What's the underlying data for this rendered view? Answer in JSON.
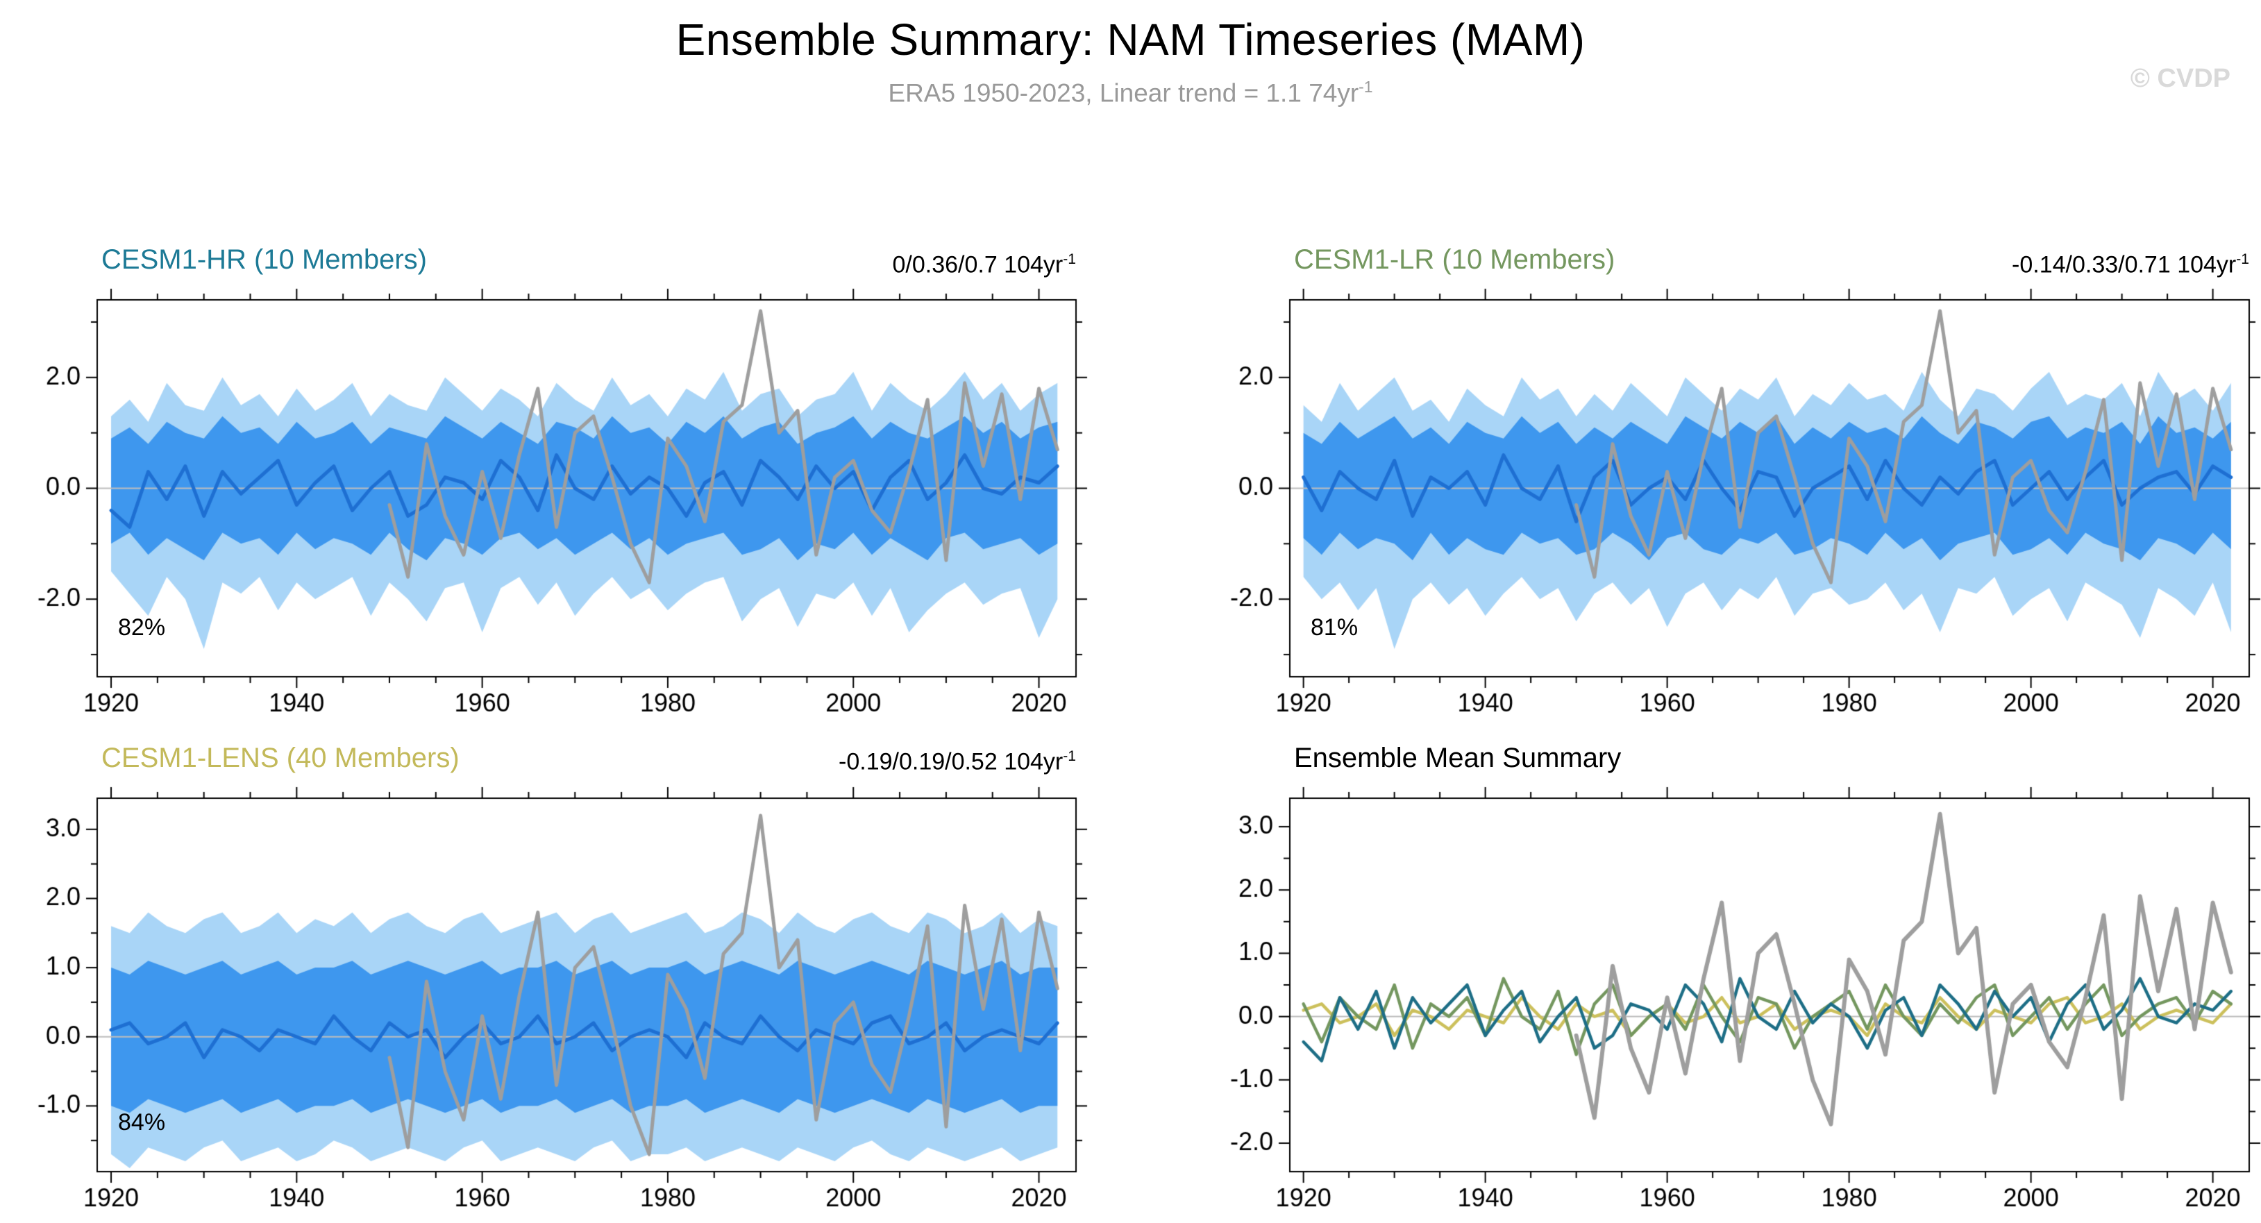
{
  "header": {
    "title": "Ensemble Summary: NAM Timeseries (MAM)",
    "subtitle_text": "ERA5 1950-2023, Linear trend = 1.1 74yr",
    "subtitle_sup": "-1",
    "watermark": "© CVDP"
  },
  "colors": {
    "outer_band": "#a9d5f7",
    "inner_band": "#3e97ee",
    "mean_line": "#1e6fd2",
    "obs_line": "#9e9e9e",
    "zero_line": "#bdbdbd",
    "hr": "#1d6e86",
    "lr": "#74975f",
    "lens": "#ccc05c",
    "hr_title": "#1d7a96",
    "lr_title": "#74975f",
    "lens_title": "#c3b95a",
    "summary_title": "#000000",
    "subtitle": "#999999",
    "watermark": "#d9d9d9",
    "axis": "#000000"
  },
  "chart_data": {
    "type": "line",
    "title": "Ensemble Summary: NAM Timeseries (MAM)",
    "subtitle": "ERA5 1950-2023, Linear trend = 1.1 74yr-1",
    "x_years_models": [
      1920,
      1922,
      1924,
      1926,
      1928,
      1930,
      1932,
      1934,
      1936,
      1938,
      1940,
      1942,
      1944,
      1946,
      1948,
      1950,
      1952,
      1954,
      1956,
      1958,
      1960,
      1962,
      1964,
      1966,
      1968,
      1970,
      1972,
      1974,
      1976,
      1978,
      1980,
      1982,
      1984,
      1986,
      1988,
      1990,
      1992,
      1994,
      1996,
      1998,
      2000,
      2002,
      2004,
      2006,
      2008,
      2010,
      2012,
      2014,
      2016,
      2018,
      2020,
      2022
    ],
    "obs": {
      "name": "ERA5",
      "years": [
        1950,
        1952,
        1954,
        1956,
        1958,
        1960,
        1962,
        1964,
        1966,
        1968,
        1970,
        1972,
        1974,
        1976,
        1978,
        1980,
        1982,
        1984,
        1986,
        1988,
        1990,
        1992,
        1994,
        1996,
        1998,
        2000,
        2002,
        2004,
        2006,
        2008,
        2010,
        2012,
        2014,
        2016,
        2018,
        2020,
        2022
      ],
      "values": [
        -0.3,
        -1.6,
        0.8,
        -0.5,
        -1.2,
        0.3,
        -0.9,
        0.6,
        1.8,
        -0.7,
        1.0,
        1.3,
        0.2,
        -1.0,
        -1.7,
        0.9,
        0.4,
        -0.6,
        1.2,
        1.5,
        3.2,
        1.0,
        1.4,
        -1.2,
        0.2,
        0.5,
        -0.4,
        -0.8,
        0.3,
        1.6,
        -1.3,
        1.9,
        0.4,
        1.7,
        -0.2,
        1.8,
        0.7
      ]
    },
    "models": {
      "cesm1_hr": {
        "label": "CESM1-HR (10 Members)",
        "mean": [
          -0.4,
          -0.7,
          0.3,
          -0.2,
          0.4,
          -0.5,
          0.3,
          -0.1,
          0.2,
          0.5,
          -0.3,
          0.1,
          0.4,
          -0.4,
          0.0,
          0.3,
          -0.5,
          -0.3,
          0.2,
          0.1,
          -0.2,
          0.5,
          0.2,
          -0.4,
          0.6,
          0.0,
          -0.2,
          0.4,
          -0.1,
          0.2,
          0.0,
          -0.5,
          0.1,
          0.3,
          -0.3,
          0.5,
          0.2,
          -0.2,
          0.4,
          0.0,
          0.3,
          -0.4,
          0.2,
          0.5,
          -0.2,
          0.1,
          0.6,
          0.0,
          -0.1,
          0.2,
          0.1,
          0.4
        ],
        "inner_upper": [
          0.9,
          1.1,
          0.8,
          1.2,
          1.0,
          0.9,
          1.3,
          1.0,
          1.1,
          0.8,
          1.2,
          0.9,
          1.0,
          1.2,
          0.8,
          1.1,
          1.0,
          0.9,
          1.3,
          1.1,
          0.9,
          1.2,
          1.0,
          0.8,
          1.2,
          1.1,
          0.9,
          1.3,
          1.0,
          1.1,
          0.8,
          1.2,
          1.0,
          1.3,
          0.9,
          1.1,
          1.2,
          0.8,
          1.0,
          1.1,
          1.3,
          0.9,
          1.2,
          1.0,
          0.9,
          1.1,
          1.3,
          1.0,
          1.2,
          0.9,
          1.1,
          1.2
        ],
        "inner_lower": [
          -1.0,
          -0.8,
          -1.2,
          -0.9,
          -1.1,
          -1.3,
          -0.8,
          -1.0,
          -0.9,
          -1.2,
          -0.8,
          -1.1,
          -0.9,
          -1.0,
          -1.2,
          -0.8,
          -1.1,
          -1.3,
          -0.9,
          -1.0,
          -1.2,
          -0.9,
          -0.8,
          -1.1,
          -0.9,
          -1.2,
          -1.0,
          -0.8,
          -1.1,
          -0.9,
          -1.2,
          -1.0,
          -0.9,
          -0.8,
          -1.2,
          -1.1,
          -0.9,
          -1.3,
          -1.0,
          -1.1,
          -0.8,
          -1.2,
          -0.9,
          -1.1,
          -1.3,
          -0.9,
          -0.8,
          -1.1,
          -1.0,
          -0.9,
          -1.2,
          -1.0
        ],
        "outer_upper": [
          1.3,
          1.6,
          1.2,
          1.9,
          1.5,
          1.4,
          2.0,
          1.5,
          1.7,
          1.3,
          1.8,
          1.4,
          1.6,
          1.9,
          1.3,
          1.7,
          1.5,
          1.4,
          2.0,
          1.7,
          1.4,
          1.8,
          1.6,
          1.3,
          1.9,
          1.6,
          1.4,
          2.0,
          1.5,
          1.7,
          1.3,
          1.8,
          1.6,
          2.1,
          1.4,
          1.7,
          1.8,
          1.3,
          1.6,
          1.7,
          2.1,
          1.4,
          1.9,
          1.6,
          1.4,
          1.7,
          2.1,
          1.6,
          1.9,
          1.4,
          1.7,
          1.9
        ],
        "outer_lower": [
          -1.5,
          -1.9,
          -2.3,
          -1.6,
          -2.0,
          -2.9,
          -1.7,
          -1.9,
          -1.6,
          -2.2,
          -1.7,
          -2.0,
          -1.8,
          -1.6,
          -2.3,
          -1.7,
          -2.0,
          -2.4,
          -1.8,
          -1.7,
          -2.6,
          -1.8,
          -1.6,
          -2.1,
          -1.7,
          -2.3,
          -1.9,
          -1.6,
          -2.0,
          -1.8,
          -2.2,
          -1.9,
          -1.7,
          -1.6,
          -2.4,
          -2.0,
          -1.8,
          -2.5,
          -1.9,
          -2.0,
          -1.7,
          -2.3,
          -1.8,
          -2.6,
          -2.2,
          -1.9,
          -1.7,
          -2.1,
          -1.9,
          -1.8,
          -2.7,
          -2.0
        ]
      },
      "cesm1_lr": {
        "label": "CESM1-LR (10 Members)",
        "mean": [
          0.2,
          -0.4,
          0.3,
          0.0,
          -0.2,
          0.5,
          -0.5,
          0.2,
          0.0,
          0.3,
          -0.3,
          0.6,
          0.0,
          -0.2,
          0.4,
          -0.6,
          0.2,
          0.5,
          -0.3,
          0.0,
          0.2,
          -0.2,
          0.5,
          0.0,
          -0.4,
          0.3,
          0.2,
          -0.5,
          0.0,
          0.2,
          0.4,
          -0.2,
          0.5,
          0.0,
          -0.3,
          0.2,
          -0.1,
          0.3,
          0.5,
          -0.3,
          0.0,
          0.3,
          -0.2,
          0.2,
          0.5,
          -0.3,
          0.0,
          0.2,
          0.3,
          -0.1,
          0.4,
          0.2
        ],
        "inner_upper": [
          1.0,
          0.8,
          1.2,
          0.9,
          1.1,
          1.3,
          0.9,
          1.1,
          0.8,
          1.2,
          1.0,
          0.9,
          1.3,
          1.0,
          1.2,
          0.8,
          1.1,
          0.9,
          1.2,
          1.0,
          0.8,
          1.3,
          1.1,
          0.9,
          1.2,
          1.0,
          1.3,
          0.8,
          1.1,
          0.9,
          1.2,
          1.0,
          1.1,
          0.9,
          1.3,
          1.0,
          0.8,
          1.2,
          1.1,
          0.9,
          1.2,
          1.3,
          0.9,
          1.1,
          1.0,
          1.2,
          0.8,
          1.3,
          1.0,
          1.1,
          0.9,
          1.2
        ],
        "inner_lower": [
          -0.9,
          -1.2,
          -0.8,
          -1.1,
          -0.9,
          -1.0,
          -1.3,
          -0.8,
          -1.2,
          -0.9,
          -1.1,
          -1.2,
          -0.8,
          -1.0,
          -0.9,
          -1.2,
          -1.1,
          -0.8,
          -1.0,
          -1.3,
          -0.9,
          -0.8,
          -1.1,
          -1.2,
          -0.9,
          -1.0,
          -0.8,
          -1.2,
          -1.1,
          -0.9,
          -1.0,
          -1.2,
          -0.8,
          -1.1,
          -0.9,
          -1.3,
          -1.0,
          -0.9,
          -0.8,
          -1.2,
          -1.1,
          -0.9,
          -1.2,
          -0.8,
          -1.0,
          -1.1,
          -1.3,
          -0.9,
          -1.0,
          -1.2,
          -0.8,
          -1.1
        ],
        "outer_upper": [
          1.5,
          1.2,
          1.9,
          1.4,
          1.7,
          2.0,
          1.4,
          1.6,
          1.2,
          1.8,
          1.5,
          1.3,
          2.0,
          1.6,
          1.8,
          1.3,
          1.7,
          1.4,
          1.9,
          1.6,
          1.3,
          2.0,
          1.7,
          1.4,
          1.8,
          1.6,
          2.0,
          1.3,
          1.7,
          1.5,
          1.9,
          1.6,
          1.7,
          1.4,
          2.1,
          1.6,
          1.3,
          1.8,
          1.7,
          1.4,
          1.8,
          2.1,
          1.5,
          1.7,
          1.6,
          1.9,
          1.3,
          2.1,
          1.6,
          1.8,
          1.4,
          1.9
        ],
        "outer_lower": [
          -1.6,
          -2.0,
          -1.7,
          -2.2,
          -1.8,
          -2.9,
          -2.0,
          -1.7,
          -2.1,
          -1.8,
          -2.3,
          -1.9,
          -1.6,
          -2.0,
          -1.8,
          -2.4,
          -1.9,
          -1.7,
          -2.1,
          -1.8,
          -2.5,
          -1.9,
          -1.7,
          -2.2,
          -1.8,
          -2.0,
          -1.6,
          -2.3,
          -1.9,
          -1.8,
          -2.1,
          -2.0,
          -1.7,
          -2.2,
          -1.9,
          -2.6,
          -1.8,
          -1.9,
          -1.6,
          -2.3,
          -2.0,
          -1.8,
          -2.4,
          -1.7,
          -1.9,
          -2.1,
          -2.7,
          -1.8,
          -2.0,
          -2.3,
          -1.7,
          -2.6
        ]
      },
      "cesm1_lens": {
        "label": "CESM1-LENS (40 Members)",
        "mean": [
          0.1,
          0.2,
          -0.1,
          0.0,
          0.2,
          -0.3,
          0.1,
          0.0,
          -0.2,
          0.1,
          0.0,
          -0.1,
          0.3,
          0.0,
          -0.2,
          0.2,
          0.0,
          0.1,
          -0.3,
          0.0,
          0.2,
          -0.1,
          0.0,
          0.3,
          -0.1,
          0.0,
          0.2,
          -0.2,
          0.0,
          0.1,
          0.0,
          -0.3,
          0.2,
          0.0,
          -0.1,
          0.3,
          0.0,
          -0.2,
          0.1,
          0.0,
          -0.1,
          0.2,
          0.3,
          -0.1,
          0.0,
          0.2,
          -0.2,
          0.0,
          0.1,
          0.0,
          -0.1,
          0.2
        ],
        "inner_upper": [
          1.0,
          0.9,
          1.1,
          1.0,
          0.9,
          1.0,
          1.1,
          0.9,
          1.0,
          1.1,
          0.9,
          1.0,
          1.0,
          1.1,
          0.9,
          1.0,
          1.1,
          1.0,
          0.9,
          1.0,
          1.1,
          0.9,
          1.0,
          1.0,
          1.1,
          0.9,
          1.0,
          1.1,
          0.9,
          1.0,
          1.0,
          1.1,
          0.9,
          1.0,
          1.1,
          1.0,
          0.9,
          1.1,
          1.0,
          0.9,
          1.0,
          1.1,
          1.0,
          0.9,
          1.1,
          1.0,
          0.9,
          1.0,
          1.1,
          0.9,
          1.0,
          1.0
        ],
        "inner_lower": [
          -1.0,
          -1.1,
          -0.9,
          -1.0,
          -1.1,
          -1.0,
          -0.9,
          -1.1,
          -1.0,
          -0.9,
          -1.1,
          -1.0,
          -1.0,
          -0.9,
          -1.1,
          -1.0,
          -0.9,
          -1.0,
          -1.1,
          -1.0,
          -0.9,
          -1.1,
          -1.0,
          -1.0,
          -0.9,
          -1.1,
          -1.0,
          -0.9,
          -1.1,
          -1.0,
          -1.0,
          -0.9,
          -1.1,
          -1.0,
          -0.9,
          -1.0,
          -1.1,
          -0.9,
          -1.0,
          -1.1,
          -1.0,
          -0.9,
          -1.0,
          -1.1,
          -0.9,
          -1.0,
          -1.1,
          -1.0,
          -0.9,
          -1.1,
          -1.0,
          -1.0
        ],
        "outer_upper": [
          1.6,
          1.5,
          1.8,
          1.6,
          1.5,
          1.7,
          1.8,
          1.5,
          1.6,
          1.8,
          1.5,
          1.7,
          1.6,
          1.8,
          1.5,
          1.7,
          1.8,
          1.6,
          1.5,
          1.7,
          1.8,
          1.5,
          1.6,
          1.7,
          1.8,
          1.5,
          1.7,
          1.8,
          1.5,
          1.6,
          1.7,
          1.8,
          1.5,
          1.6,
          1.8,
          1.7,
          1.5,
          1.8,
          1.6,
          1.5,
          1.7,
          1.8,
          1.6,
          1.5,
          1.8,
          1.7,
          1.5,
          1.6,
          1.8,
          1.5,
          1.7,
          1.6
        ],
        "outer_lower": [
          -1.7,
          -1.9,
          -1.6,
          -1.7,
          -1.8,
          -1.6,
          -1.5,
          -1.8,
          -1.7,
          -1.6,
          -1.8,
          -1.7,
          -1.5,
          -1.6,
          -1.8,
          -1.7,
          -1.6,
          -1.7,
          -1.8,
          -1.6,
          -1.5,
          -1.8,
          -1.7,
          -1.6,
          -1.7,
          -1.8,
          -1.6,
          -1.5,
          -1.8,
          -1.7,
          -1.7,
          -1.6,
          -1.8,
          -1.7,
          -1.6,
          -1.7,
          -1.8,
          -1.6,
          -1.7,
          -1.8,
          -1.6,
          -1.5,
          -1.7,
          -1.8,
          -1.6,
          -1.7,
          -1.8,
          -1.7,
          -1.6,
          -1.8,
          -1.7,
          -1.6
        ]
      }
    },
    "panels": [
      {
        "id": "hr",
        "kind": "band",
        "model": "cesm1_hr",
        "title": "CESM1-HR (10 Members)",
        "stat_text": "0/0.36/0.7 104yr",
        "stat_sup": "-1",
        "pct": "82%",
        "ylim": [
          -3.4,
          3.4
        ],
        "yticks": [
          -2,
          0,
          2
        ],
        "ytick_labels": [
          "-2.0",
          "0.0",
          "2.0"
        ],
        "ytick_minor": 1,
        "xlim": [
          1918.5,
          2024
        ],
        "xticks": [
          1920,
          1940,
          1960,
          1980,
          2000,
          2020
        ],
        "xtick_labels": [
          "1920",
          "1940",
          "1960",
          "1980",
          "2000",
          "2020"
        ],
        "xtick_minor": 5
      },
      {
        "id": "lr",
        "kind": "band",
        "model": "cesm1_lr",
        "title": "CESM1-LR (10 Members)",
        "stat_text": "-0.14/0.33/0.71 104yr",
        "stat_sup": "-1",
        "pct": "81%",
        "ylim": [
          -3.4,
          3.4
        ],
        "yticks": [
          -2,
          0,
          2
        ],
        "ytick_labels": [
          "-2.0",
          "0.0",
          "2.0"
        ],
        "ytick_minor": 1,
        "xlim": [
          1918.5,
          2024
        ],
        "xticks": [
          1920,
          1940,
          1960,
          1980,
          2000,
          2020
        ],
        "xtick_labels": [
          "1920",
          "1940",
          "1960",
          "1980",
          "2000",
          "2020"
        ],
        "xtick_minor": 5
      },
      {
        "id": "lens",
        "kind": "band",
        "model": "cesm1_lens",
        "title": "CESM1-LENS (40 Members)",
        "stat_text": "-0.19/0.19/0.52 104yr",
        "stat_sup": "-1",
        "pct": "84%",
        "ylim": [
          -1.95,
          3.45
        ],
        "yticks": [
          3,
          2,
          1,
          0,
          -1
        ],
        "ytick_labels": [
          "3.0",
          "2.0",
          "1.0",
          "0.0",
          "-1.0"
        ],
        "ytick_minor": 0.5,
        "xlim": [
          1918.5,
          2024
        ],
        "xticks": [
          1920,
          1940,
          1960,
          1980,
          2000,
          2020
        ],
        "xtick_labels": [
          "1920",
          "1940",
          "1960",
          "1980",
          "2000",
          "2020"
        ],
        "xtick_minor": 5
      },
      {
        "id": "summary",
        "kind": "lines",
        "title": "Ensemble Mean Summary",
        "series": [
          "cesm1_lens",
          "cesm1_lr",
          "cesm1_hr",
          "obs"
        ],
        "ylim": [
          -2.45,
          3.45
        ],
        "yticks": [
          3,
          2,
          1,
          0,
          -1,
          -2
        ],
        "ytick_labels": [
          "3.0",
          "2.0",
          "1.0",
          "0.0",
          "-1.0",
          "-2.0"
        ],
        "ytick_minor": 0.5,
        "xlim": [
          1918.5,
          2024
        ],
        "xticks": [
          1920,
          1940,
          1960,
          1980,
          2000,
          2020
        ],
        "xtick_labels": [
          "1920",
          "1940",
          "1960",
          "1980",
          "2000",
          "2020"
        ],
        "xtick_minor": 5
      }
    ]
  }
}
